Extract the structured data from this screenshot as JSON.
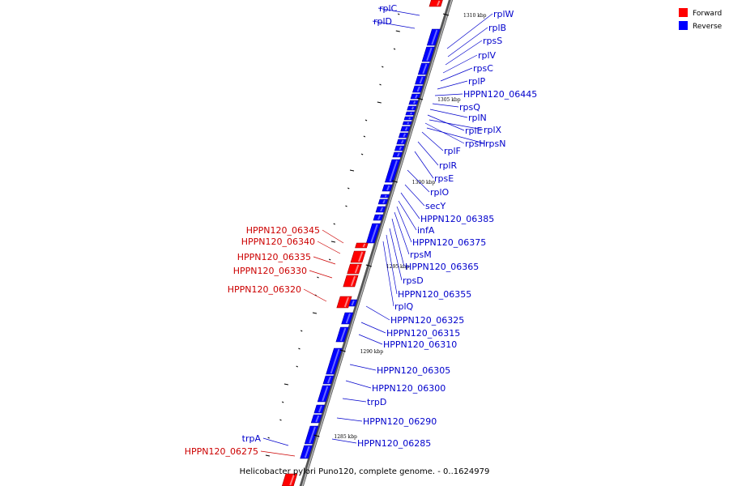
{
  "caption": "Helicobacter pylori Puno120, complete genome. - 0..1624979",
  "legend": [
    {
      "label": "Forward",
      "color": "#ff0000"
    },
    {
      "label": "Reverse",
      "color": "#0000ff"
    }
  ],
  "colors": {
    "forward": "#ff0000",
    "reverse": "#0000ff",
    "forward_label": "#cc0000",
    "reverse_label": "#0000cc",
    "backbone": "#888888"
  },
  "ticks": [
    "1310 kbp",
    "1305 kbp",
    "1300 kbp",
    "1295 kbp",
    "1290 kbp",
    "1285 kbp"
  ],
  "reverse_labels": [
    "rplC",
    "rplD",
    "rplW",
    "rplB",
    "rpsS",
    "rplV",
    "rpsC",
    "rplP",
    "HPPN120_06445",
    "rpsQ",
    "rplN",
    "rplE",
    "rplX",
    "rpsH",
    "rpsN",
    "rplF",
    "rplR",
    "rpsE",
    "rplO",
    "secY",
    "HPPN120_06385",
    "infA",
    "HPPN120_06375",
    "rpsM",
    "HPPN120_06365",
    "rpsD",
    "HPPN120_06355",
    "rplQ",
    "HPPN120_06325",
    "HPPN120_06315",
    "HPPN120_06310",
    "HPPN120_06305",
    "HPPN120_06300",
    "trpD",
    "HPPN120_06290",
    "trpA",
    "HPPN120_06285"
  ],
  "forward_labels": [
    "HPPN120_06345",
    "HPPN120_06340",
    "HPPN120_06335",
    "HPPN120_06330",
    "HPPN120_06320",
    "HPPN120_06275"
  ]
}
